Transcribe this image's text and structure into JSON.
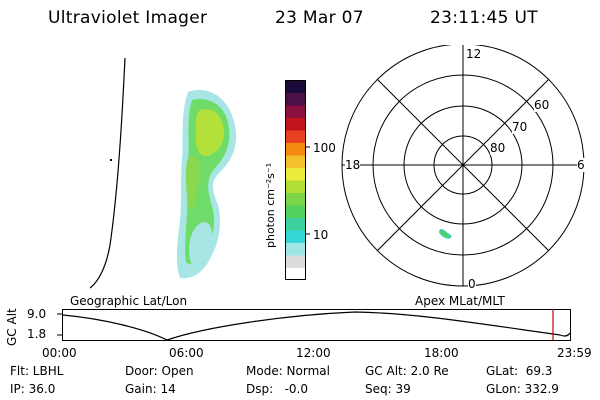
{
  "header": {
    "instrument": "Ultraviolet Imager",
    "date": "23 Mar 07",
    "time": "23:11:45 UT"
  },
  "colorbar": {
    "title": "photon cm⁻²s⁻¹",
    "ticks": [
      "100",
      "10"
    ],
    "scale": "log",
    "colors": [
      "#ffffff",
      "#dcdcdc",
      "#a0e6e6",
      "#35d6d6",
      "#3fd0a0",
      "#52d060",
      "#7cd548",
      "#b2dc36",
      "#ecec3c",
      "#f4c02c",
      "#f58a10",
      "#e84020",
      "#c0141e",
      "#8a1040",
      "#4a1048",
      "#1a0a3a"
    ]
  },
  "polar": {
    "mlt": [
      "12",
      "6",
      "18",
      "0"
    ],
    "mlat": [
      "60",
      "70",
      "80"
    ]
  },
  "orbit": {
    "map_label_left": "Geographic Lat/Lon",
    "map_label_right": "Apex  MLat/MLT",
    "axis_label": "GC Alt",
    "y_ticks": [
      "9.0",
      "1.8"
    ],
    "x_ticks": [
      "00:00",
      "06:00",
      "12:00",
      "18:00",
      "23:59"
    ],
    "marker_color": "#cc0000"
  },
  "footer": {
    "row1": [
      "Flt: LBHL",
      "Door: Open",
      "Mode: Normal",
      "GC Alt: 2.0 Re",
      "GLat:  69.3"
    ],
    "row2": [
      "IP: 36.0",
      "Gain: 14",
      "Dsp:   -0.0",
      "Seq: 39",
      "GLon: 332.9"
    ]
  }
}
